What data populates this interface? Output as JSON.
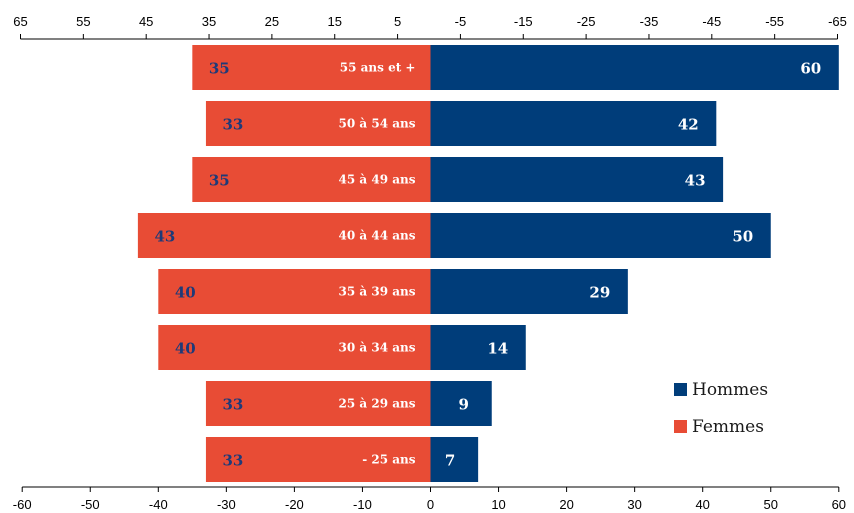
{
  "chart_data": {
    "type": "bar",
    "orientation": "horizontal",
    "layout": "population-pyramid",
    "categories": [
      "55 ans et +",
      "50 à 54 ans",
      "45 à 49 ans",
      "40 à 44 ans",
      "35 à 39 ans",
      "30 à 34 ans",
      "25 à 29 ans",
      "- 25 ans"
    ],
    "series": [
      {
        "name": "Hommes",
        "values": [
          60,
          42,
          43,
          50,
          29,
          14,
          9,
          7
        ],
        "color": "#003d7a",
        "label_color": "#ffffff"
      },
      {
        "name": "Femmes",
        "values": [
          35,
          33,
          35,
          43,
          40,
          40,
          33,
          33
        ],
        "color": "#e84c35",
        "label_color": "#1f3a78"
      }
    ],
    "bottom_axis": {
      "ticks": [
        "-60",
        "-50",
        "-40",
        "-30",
        "-20",
        "-10",
        "0",
        "10",
        "20",
        "30",
        "40",
        "50",
        "60"
      ],
      "range": [
        -60,
        60
      ]
    },
    "top_axis": {
      "ticks": [
        "65",
        "55",
        "45",
        "35",
        "25",
        "15",
        "5",
        "-5",
        "-15",
        "-25",
        "-35",
        "-45",
        "-55",
        "-65"
      ],
      "range": [
        65,
        -65
      ]
    },
    "legend": {
      "position": "bottom-right",
      "entries": [
        "Hommes",
        "Femmes"
      ]
    },
    "grid": false,
    "title": "",
    "xlabel": "",
    "ylabel": ""
  }
}
